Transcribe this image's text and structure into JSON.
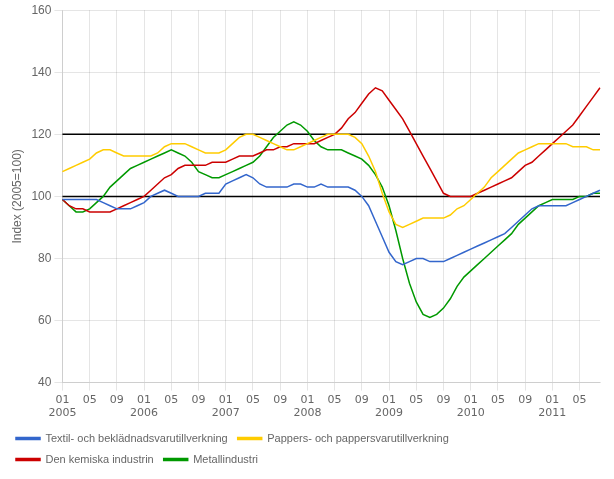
{
  "chart_data": {
    "type": "line",
    "ylabel": "Index (2005=100)",
    "categories": [
      "01\n2005",
      null,
      null,
      null,
      "05",
      null,
      null,
      null,
      "09",
      null,
      null,
      null,
      "01\n2006",
      null,
      null,
      null,
      "05",
      null,
      null,
      null,
      "09",
      null,
      null,
      null,
      "01\n2007",
      null,
      null,
      null,
      "05",
      null,
      null,
      null,
      "09",
      null,
      null,
      null,
      "01\n2008",
      null,
      null,
      null,
      "05",
      null,
      null,
      null,
      "09",
      null,
      null,
      null,
      "01\n2009",
      null,
      null,
      null,
      "05",
      null,
      null,
      null,
      "09",
      null,
      null,
      null,
      "01\n2010",
      null,
      null,
      null,
      "05",
      null,
      null,
      null,
      "09",
      null,
      null,
      null,
      "01\n2011",
      null,
      null,
      null,
      "05",
      null,
      null,
      null
    ],
    "ylim": [
      40,
      160
    ],
    "yticks": [
      40,
      60,
      80,
      100,
      120,
      140,
      160
    ],
    "hlines": [
      100,
      120
    ],
    "grid": true,
    "legend": "lower left",
    "series": [
      {
        "name": "Textil- och beklädnadsvarutillverkning",
        "color": "#3366cc",
        "values": [
          99,
          99,
          99,
          99,
          99,
          99,
          98,
          97,
          96,
          96,
          96,
          97,
          98,
          100,
          101,
          102,
          101,
          100,
          100,
          100,
          100,
          101,
          101,
          101,
          104,
          105,
          106,
          107,
          106,
          104,
          103,
          103,
          103,
          103,
          104,
          104,
          103,
          103,
          104,
          103,
          103,
          103,
          103,
          102,
          100,
          97,
          92,
          87,
          82,
          79,
          78,
          79,
          80,
          80,
          79,
          79,
          79,
          80,
          81,
          82,
          83,
          84,
          85,
          86,
          87,
          88,
          90,
          92,
          94,
          96,
          97,
          97,
          97,
          97,
          97,
          98,
          99,
          100,
          101,
          102
        ]
      },
      {
        "name": "Pappers- och pappersvarutillverkning",
        "color": "#ffcc00",
        "values": [
          108,
          109,
          110,
          111,
          112,
          114,
          115,
          115,
          114,
          113,
          113,
          113,
          113,
          113,
          114,
          116,
          117,
          117,
          117,
          116,
          115,
          114,
          114,
          114,
          115,
          117,
          119,
          120,
          120,
          119,
          118,
          117,
          116,
          115,
          115,
          116,
          117,
          118,
          119,
          120,
          120,
          120,
          120,
          119,
          117,
          113,
          108,
          101,
          95,
          91,
          90,
          91,
          92,
          93,
          93,
          93,
          93,
          94,
          96,
          97,
          99,
          101,
          103,
          106,
          108,
          110,
          112,
          114,
          115,
          116,
          117,
          117,
          117,
          117,
          117,
          116,
          116,
          116,
          115,
          115
        ]
      },
      {
        "name": "Den kemiska industrin",
        "color": "#cc0000",
        "values": [
          99,
          97,
          96,
          96,
          95,
          95,
          95,
          95,
          96,
          97,
          98,
          99,
          100,
          102,
          104,
          106,
          107,
          109,
          110,
          110,
          110,
          110,
          111,
          111,
          111,
          112,
          113,
          113,
          113,
          114,
          115,
          115,
          116,
          116,
          117,
          117,
          117,
          117,
          118,
          119,
          120,
          122,
          125,
          127,
          130,
          133,
          135,
          134,
          131,
          128,
          125,
          121,
          117,
          113,
          109,
          105,
          101,
          100,
          100,
          100,
          100,
          101,
          102,
          103,
          104,
          105,
          106,
          108,
          110,
          111,
          113,
          115,
          117,
          119,
          121,
          123,
          126,
          129,
          132,
          135
        ]
      },
      {
        "name": "Metallindustri",
        "color": "#009900",
        "values": [
          99,
          97,
          95,
          95,
          96,
          98,
          100,
          103,
          105,
          107,
          109,
          110,
          111,
          112,
          113,
          114,
          115,
          114,
          113,
          111,
          108,
          107,
          106,
          106,
          107,
          108,
          109,
          110,
          111,
          113,
          116,
          119,
          121,
          123,
          124,
          123,
          121,
          118,
          116,
          115,
          115,
          115,
          114,
          113,
          112,
          110,
          107,
          103,
          97,
          89,
          80,
          72,
          66,
          62,
          61,
          62,
          64,
          67,
          71,
          74,
          76,
          78,
          80,
          82,
          84,
          86,
          88,
          91,
          93,
          95,
          97,
          98,
          99,
          99,
          99,
          99,
          100,
          100,
          101,
          101
        ]
      }
    ]
  }
}
